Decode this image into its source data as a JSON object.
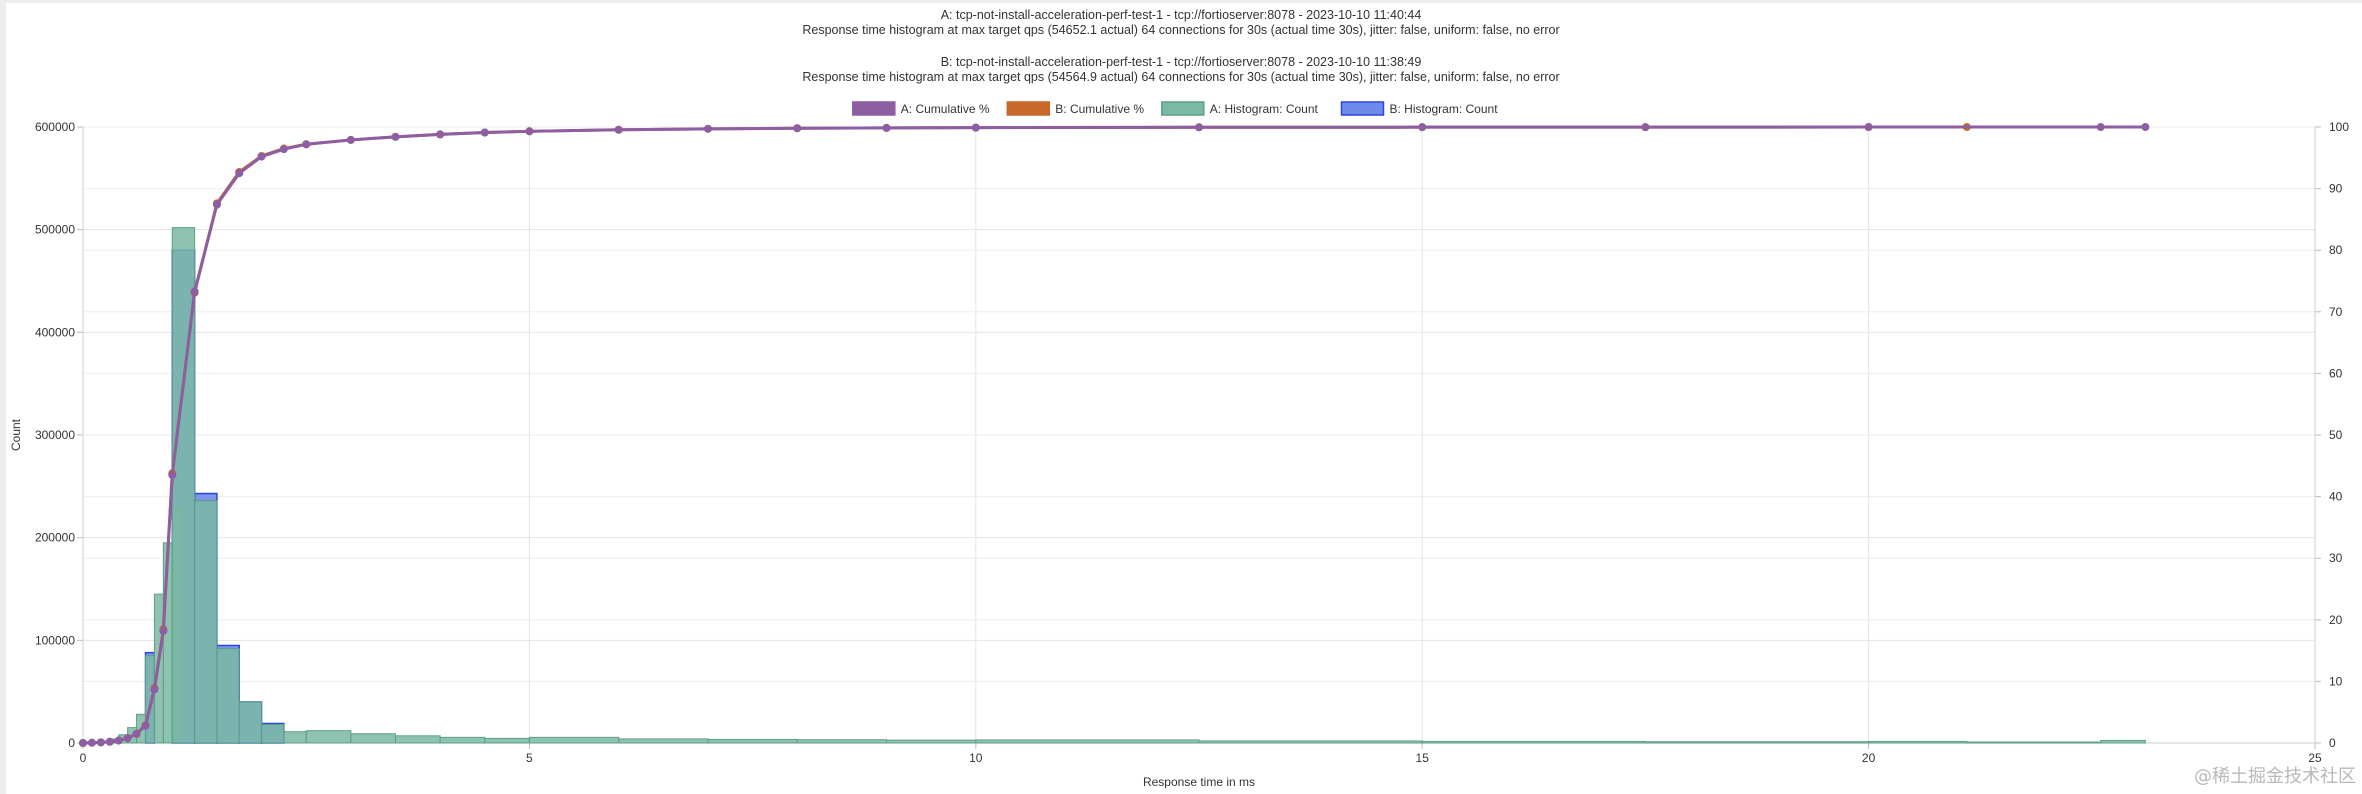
{
  "titles": {
    "line_a1": "A: tcp-not-install-acceleration-perf-test-1 - tcp://fortioserver:8078 - 2023-10-10 11:40:44",
    "line_a2": "Response time histogram at max target qps (54652.1 actual) 64 connections for 30s (actual time 30s), jitter: false, uniform: false, no error",
    "line_b1": "B: tcp-not-install-acceleration-perf-test-1 - tcp://fortioserver:8078 - 2023-10-10 11:38:49",
    "line_b2": "Response time histogram at max target qps (54564.9 actual) 64 connections for 30s (actual time 30s), jitter: false, uniform: false, no error"
  },
  "watermark": "@稀土掘金技术社区",
  "colors": {
    "a_cumulative": "#8e5ea2",
    "b_cumulative": "#c8692b",
    "a_hist_fill": "#7ab9a3",
    "a_hist_border": "#5e9e88",
    "b_hist_fill": "#6f8bea",
    "b_hist_border": "#2b47e0",
    "grid": "#e5e5e5"
  },
  "chart_data": {
    "type": "bar",
    "xlabel": "Response time in ms",
    "ylabel": "Count",
    "y2label": "",
    "xlim": [
      0,
      25
    ],
    "ylim": [
      0,
      600000
    ],
    "y2lim": [
      0,
      100
    ],
    "x_ticks": [
      "0",
      "5",
      "10",
      "15",
      "20",
      "25"
    ],
    "y_ticks": [
      "0",
      "100000",
      "200000",
      "300000",
      "400000",
      "500000",
      "600000"
    ],
    "y2_ticks": [
      "0",
      "10",
      "20",
      "30",
      "40",
      "50",
      "60",
      "70",
      "80",
      "90",
      "100"
    ],
    "legend_position": "top",
    "legend": [
      "A: Cumulative %",
      "B: Cumulative %",
      "A: Histogram: Count",
      "B: Histogram: Count"
    ],
    "series": [
      {
        "name": "A: Histogram: Count",
        "kind": "histogram",
        "bins": [
          [
            0.0,
            0.1,
            500
          ],
          [
            0.1,
            0.2,
            1000
          ],
          [
            0.2,
            0.3,
            2000
          ],
          [
            0.3,
            0.4,
            4000
          ],
          [
            0.4,
            0.5,
            8000
          ],
          [
            0.5,
            0.6,
            15000
          ],
          [
            0.6,
            0.7,
            28000
          ],
          [
            0.7,
            0.8,
            85000
          ],
          [
            0.8,
            0.9,
            145000
          ],
          [
            0.9,
            1.0,
            195000
          ],
          [
            1.0,
            1.0,
            0
          ],
          [
            1.0,
            1.1,
            228000
          ],
          [
            1.0,
            1.25,
            502000
          ],
          [
            1.25,
            1.5,
            236000
          ],
          [
            1.5,
            1.75,
            92000
          ],
          [
            1.75,
            2.0,
            40000
          ],
          [
            2.0,
            2.25,
            18000
          ],
          [
            2.25,
            2.5,
            11000
          ],
          [
            2.5,
            3.0,
            12000
          ],
          [
            3.0,
            3.5,
            9000
          ],
          [
            3.5,
            4.0,
            7000
          ],
          [
            4.0,
            4.5,
            5500
          ],
          [
            4.5,
            5.0,
            4500
          ],
          [
            5.0,
            6.0,
            5500
          ],
          [
            6.0,
            7.0,
            4000
          ],
          [
            7.0,
            8.0,
            3500
          ],
          [
            8.0,
            9.0,
            3200
          ],
          [
            9.0,
            10.0,
            2800
          ],
          [
            10.0,
            12.5,
            3000
          ],
          [
            12.5,
            15.0,
            2000
          ],
          [
            15.0,
            17.5,
            1500
          ],
          [
            17.5,
            20.0,
            1200
          ],
          [
            20.0,
            21.1,
            1500
          ],
          [
            21.1,
            22.6,
            900
          ],
          [
            22.6,
            23.1,
            2500
          ]
        ]
      },
      {
        "name": "B: Histogram: Count",
        "kind": "histogram",
        "bins": [
          [
            0.7,
            0.8,
            88000
          ],
          [
            1.0,
            1.25,
            480000
          ],
          [
            1.25,
            1.5,
            243000
          ],
          [
            1.5,
            1.75,
            95000
          ],
          [
            1.75,
            2.0,
            40000
          ],
          [
            2.0,
            2.25,
            19000
          ]
        ]
      },
      {
        "name": "A: Cumulative %",
        "kind": "line",
        "x": [
          0,
          0.1,
          0.2,
          0.3,
          0.4,
          0.5,
          0.6,
          0.7,
          0.8,
          0.9,
          1.0,
          1.25,
          1.5,
          1.75,
          2.0,
          2.25,
          2.5,
          3.0,
          3.5,
          4.0,
          4.5,
          5.0,
          6.0,
          7.0,
          8.0,
          9.0,
          10.0,
          12.5,
          15.0,
          17.5,
          20.0,
          22.6,
          23.1
        ],
        "y": [
          0,
          0.05,
          0.1,
          0.2,
          0.4,
          0.8,
          1.5,
          2.8,
          8.7,
          18.2,
          43.5,
          73.3,
          87.4,
          92.5,
          95.2,
          96.4,
          97.2,
          97.9,
          98.4,
          98.8,
          99.1,
          99.3,
          99.55,
          99.7,
          99.8,
          99.85,
          99.9,
          99.95,
          99.97,
          99.98,
          99.99,
          99.995,
          100
        ]
      },
      {
        "name": "B: Cumulative %",
        "kind": "line",
        "x": [
          0,
          0.1,
          0.2,
          0.3,
          0.4,
          0.5,
          0.6,
          0.7,
          0.8,
          0.9,
          1.0,
          1.25,
          1.5,
          1.75,
          2.0,
          2.25,
          2.5,
          3.0,
          3.5,
          4.0,
          4.5,
          5.0,
          6.0,
          7.0,
          8.0,
          9.0,
          10.0,
          12.5,
          15.0,
          17.5,
          20.0,
          21.1
        ],
        "y": [
          0,
          0.05,
          0.1,
          0.2,
          0.4,
          0.8,
          1.5,
          2.9,
          8.9,
          18.5,
          43.8,
          73.1,
          87.6,
          92.7,
          95.3,
          96.5,
          97.2,
          97.9,
          98.4,
          98.8,
          99.1,
          99.3,
          99.55,
          99.7,
          99.8,
          99.85,
          99.9,
          99.95,
          99.97,
          99.98,
          99.99,
          100
        ]
      }
    ]
  }
}
